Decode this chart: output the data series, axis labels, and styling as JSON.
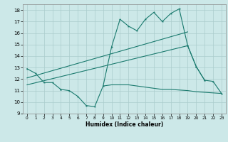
{
  "color": "#1a7a6e",
  "bg_color": "#cce8e8",
  "grid_color": "#aacccc",
  "xlabel": "Humidex (Indice chaleur)",
  "ylim": [
    9,
    18.5
  ],
  "xlim": [
    -0.5,
    23.5
  ],
  "yticks": [
    9,
    10,
    11,
    12,
    13,
    14,
    15,
    16,
    17,
    18
  ],
  "xticks": [
    0,
    1,
    2,
    3,
    4,
    5,
    6,
    7,
    8,
    9,
    10,
    11,
    12,
    13,
    14,
    15,
    16,
    17,
    18,
    19,
    20,
    21,
    22,
    23
  ],
  "line_short_x": [
    0,
    1,
    2,
    3,
    4
  ],
  "line_short_y": [
    12.9,
    12.5,
    11.7,
    11.7,
    11.1
  ],
  "line_zigzag_x": [
    4,
    5,
    6,
    7,
    8,
    9,
    10,
    11,
    12,
    13,
    14,
    15,
    16,
    17,
    18,
    19,
    20,
    21
  ],
  "line_zigzag_y": [
    11.1,
    11.0,
    10.5,
    9.7,
    9.6,
    11.4,
    14.8,
    17.2,
    16.6,
    16.2,
    17.2,
    17.8,
    17.0,
    17.7,
    18.1,
    14.9,
    13.1,
    11.9
  ],
  "line_flat_x": [
    9,
    10,
    11,
    12,
    13,
    14,
    15,
    16,
    17,
    18,
    19,
    20,
    21,
    22,
    23
  ],
  "line_flat_y": [
    11.4,
    11.5,
    11.5,
    11.5,
    11.4,
    11.3,
    11.2,
    11.1,
    11.1,
    11.05,
    11.0,
    10.9,
    10.85,
    10.8,
    10.75
  ],
  "line_trend1_x": [
    0,
    19
  ],
  "line_trend1_y": [
    12.1,
    16.1
  ],
  "line_trend2_x": [
    0,
    19
  ],
  "line_trend2_y": [
    11.5,
    14.9
  ],
  "line_tail_x": [
    19,
    20,
    21,
    22,
    23
  ],
  "line_tail_y": [
    14.9,
    13.1,
    11.9,
    11.8,
    10.75
  ]
}
